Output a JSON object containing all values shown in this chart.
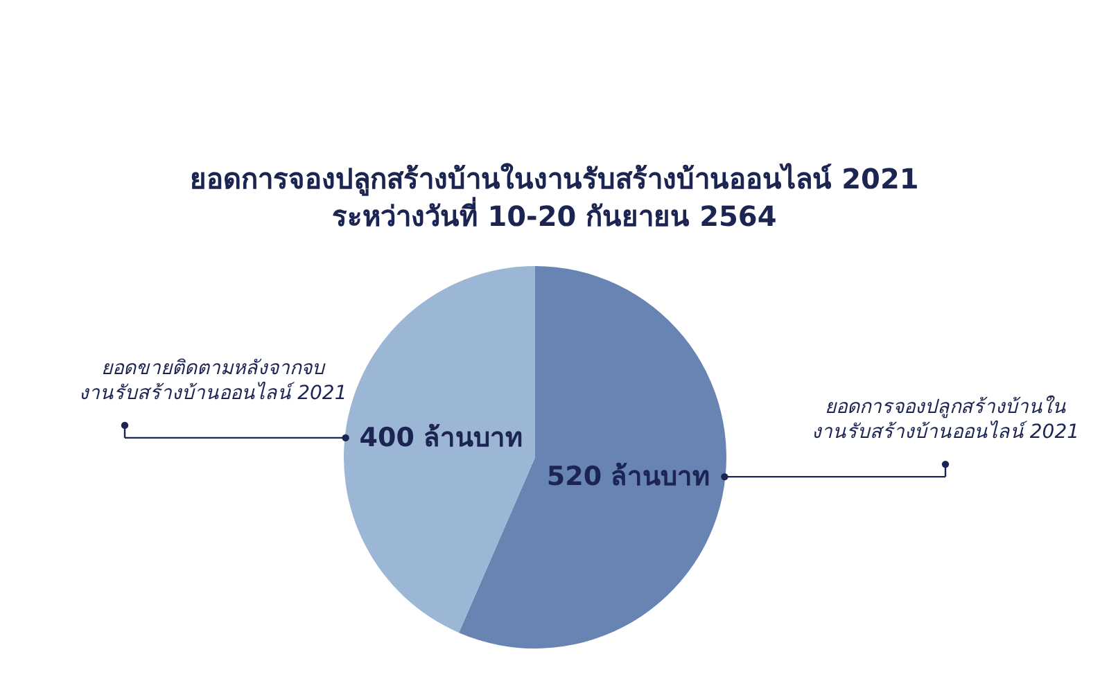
{
  "chart_data": {
    "type": "pie",
    "title": "ยอดการจองปลูกสร้างบ้านในงานรับสร้างบ้านออนไลน์ 2021",
    "subtitle": "ระหว่างวันที่ 10-20 กันยายน 2564",
    "categories": [
      "ยอดการจองปลูกสร้างบ้านใน\nงานรับสร้างบ้านออนไลน์ 2021",
      "ยอดขายติดตามหลังจากจบ\nงานรับสร้างบ้านออนไลน์ 2021"
    ],
    "values": [
      520,
      400
    ],
    "colors": [
      "#6884b3",
      "#9cb6d6"
    ],
    "value_labels": [
      "520 ล้านบาท",
      "400 ล้านบาท"
    ]
  }
}
